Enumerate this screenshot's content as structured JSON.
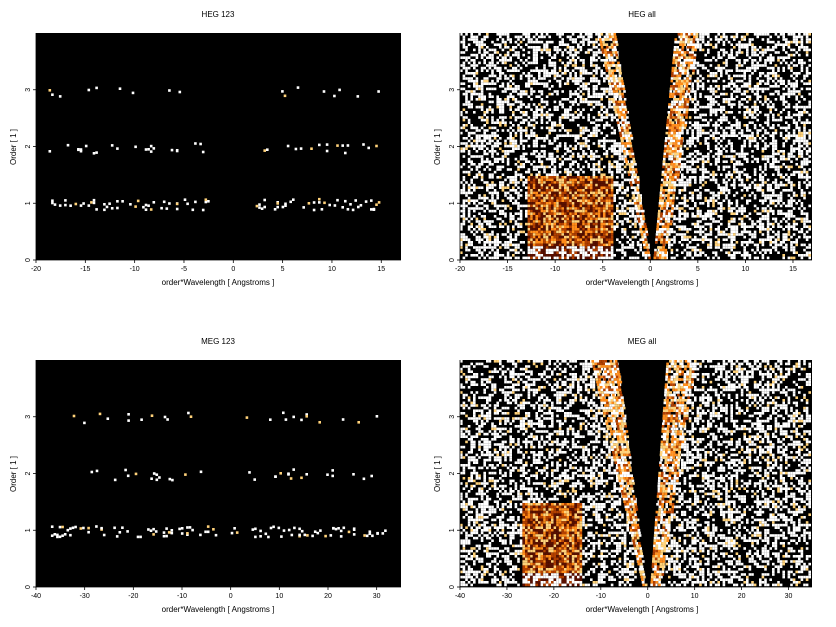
{
  "chart_data": [
    {
      "type": "heatmap",
      "title": "HEG 123",
      "xlabel": "order*Wavelength [ Angstroms ]",
      "ylabel": "Order [ 1 ]",
      "xlim": [
        -20,
        17
      ],
      "ylim": [
        0,
        4
      ],
      "xticks": [
        "-20",
        "-15",
        "-10",
        "-5",
        "0",
        "5",
        "10",
        "15"
      ],
      "yticks": [
        "0",
        "1",
        "2",
        "3"
      ],
      "background": "#000000",
      "colormap": [
        "#000000",
        "#5a1000",
        "#b34000",
        "#ff8c1a",
        "#ffd27a",
        "#ffffff"
      ],
      "bands": [
        {
          "x_range": [
            -19,
            -2.5
          ],
          "order": 1,
          "density": 0.55
        },
        {
          "x_range": [
            2,
            15
          ],
          "order": 1,
          "density": 0.5
        },
        {
          "x_range": [
            -19,
            -3
          ],
          "order": 2,
          "density": 0.3
        },
        {
          "x_range": [
            2,
            15
          ],
          "order": 2,
          "density": 0.28
        },
        {
          "x_range": [
            -19,
            -3
          ],
          "order": 3,
          "density": 0.14
        },
        {
          "x_range": [
            3,
            16
          ],
          "order": 3,
          "density": 0.14
        }
      ],
      "wedges": []
    },
    {
      "type": "heatmap",
      "title": "HEG all",
      "xlabel": "order*Wavelength [ Angstroms ]",
      "ylabel": "Order [ 1 ]",
      "xlim": [
        -20,
        17
      ],
      "ylim": [
        0,
        4
      ],
      "xticks": [
        "-20",
        "-15",
        "-10",
        "-5",
        "0",
        "5",
        "10",
        "15"
      ],
      "yticks": [
        "0",
        "1",
        "2",
        "3"
      ],
      "background": "#000000",
      "colormap": [
        "#000000",
        "#5a1000",
        "#b34000",
        "#ff8c1a",
        "#ffd27a",
        "#ffffff"
      ],
      "scatter_density": 0.46,
      "empty_wedge": {
        "x_at_top": [
          -3.8,
          2.6
        ],
        "x_at_bottom": [
          0,
          0.3
        ]
      },
      "dense_region": {
        "x_range": [
          -13,
          -4
        ],
        "y_range": [
          0,
          1.5
        ]
      },
      "bands": [],
      "wedges": [
        {
          "x_at_top": [
            -5.5,
            -3.8
          ],
          "x_at_bottom": [
            -0.4,
            0
          ]
        },
        {
          "x_at_top": [
            2.6,
            5
          ],
          "x_at_bottom": [
            0.3,
            1.5
          ]
        }
      ]
    },
    {
      "type": "heatmap",
      "title": "MEG 123",
      "xlabel": "order*Wavelength [ Angstroms ]",
      "ylabel": "Order [ 1 ]",
      "xlim": [
        -40,
        35
      ],
      "ylim": [
        0,
        4
      ],
      "xticks": [
        "-40",
        "-30",
        "-20",
        "-10",
        "0",
        "10",
        "20",
        "30"
      ],
      "yticks": [
        "0",
        "1",
        "2",
        "3"
      ],
      "background": "#000000",
      "colormap": [
        "#000000",
        "#5a1000",
        "#b34000",
        "#ff8c1a",
        "#ffd27a",
        "#ffffff"
      ],
      "bands": [
        {
          "x_range": [
            -38,
            -3
          ],
          "order": 1,
          "density": 0.5
        },
        {
          "x_range": [
            0,
            32
          ],
          "order": 1,
          "density": 0.5
        },
        {
          "x_range": [
            -32,
            -5
          ],
          "order": 2,
          "density": 0.25
        },
        {
          "x_range": [
            2,
            30
          ],
          "order": 2,
          "density": 0.25
        },
        {
          "x_range": [
            -33,
            -5
          ],
          "order": 3,
          "density": 0.22
        },
        {
          "x_range": [
            2,
            30
          ],
          "order": 3,
          "density": 0.2
        }
      ],
      "wedges": []
    },
    {
      "type": "heatmap",
      "title": "MEG all",
      "xlabel": "order*Wavelength [ Angstroms ]",
      "ylabel": "Order [ 1 ]",
      "xlim": [
        -40,
        35
      ],
      "ylim": [
        0,
        4
      ],
      "xticks": [
        "-40",
        "-30",
        "-20",
        "-10",
        "0",
        "10",
        "20",
        "30"
      ],
      "yticks": [
        "0",
        "1",
        "2",
        "3"
      ],
      "background": "#000000",
      "colormap": [
        "#000000",
        "#5a1000",
        "#b34000",
        "#ff8c1a",
        "#ffd27a",
        "#ffffff"
      ],
      "scatter_density": 0.46,
      "empty_wedge": {
        "x_at_top": [
          -6.5,
          4
        ],
        "x_at_bottom": [
          -0.5,
          0.5
        ]
      },
      "dense_region": {
        "x_range": [
          -27,
          -14
        ],
        "y_range": [
          0,
          1.5
        ]
      },
      "bands": [],
      "wedges": [
        {
          "x_at_top": [
            -12,
            -6.5
          ],
          "x_at_bottom": [
            -1,
            -0.5
          ]
        },
        {
          "x_at_top": [
            4,
            10
          ],
          "x_at_bottom": [
            0.5,
            2.5
          ]
        }
      ]
    }
  ]
}
